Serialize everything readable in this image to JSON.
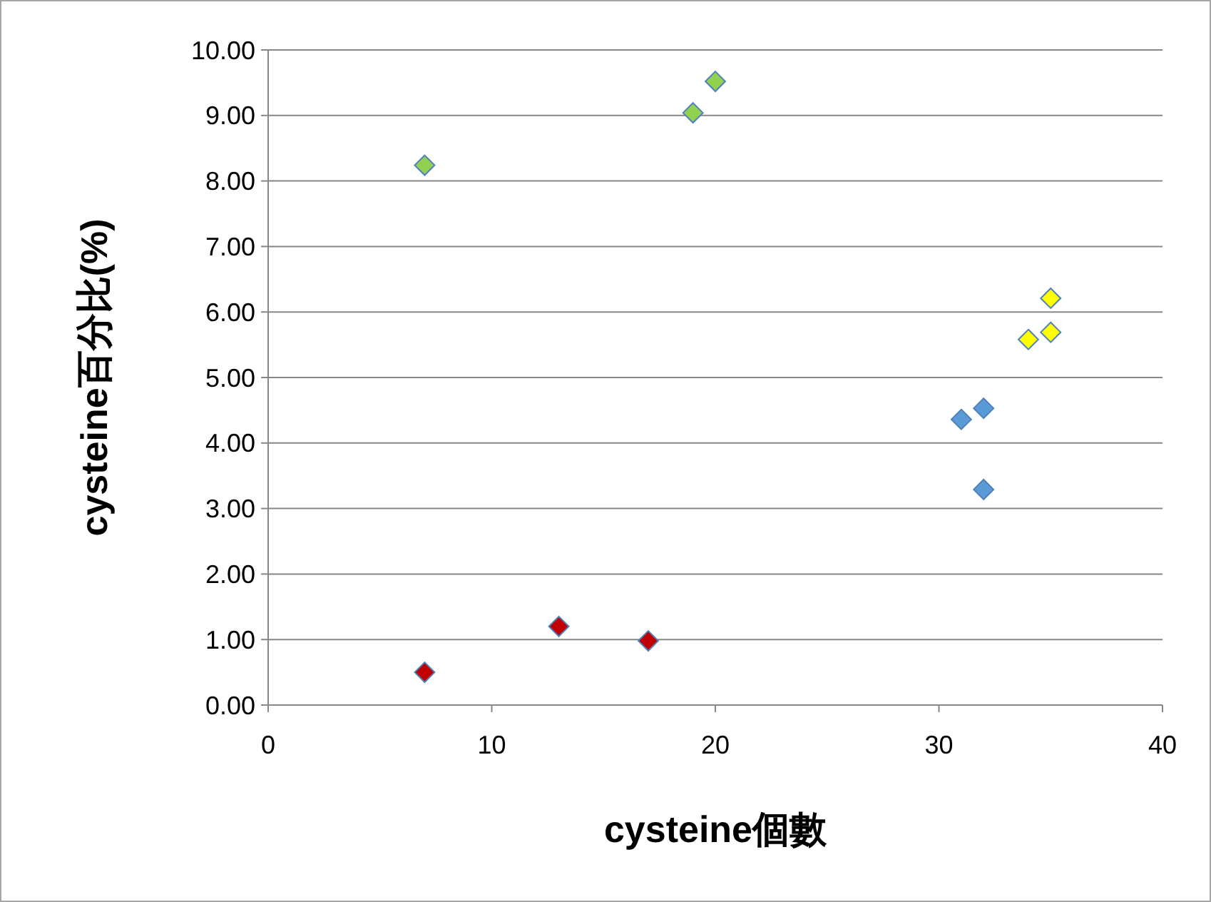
{
  "chart_data": {
    "type": "scatter",
    "xlabel": "cysteine個數",
    "ylabel": "cysteine百分比(%)",
    "xlim": [
      0,
      40
    ],
    "xticks": [
      0,
      10,
      20,
      30,
      40
    ],
    "ylim": [
      0,
      10
    ],
    "yticks": [
      {
        "value": 0,
        "label": "0.00"
      },
      {
        "value": 1,
        "label": "1.00"
      },
      {
        "value": 2,
        "label": "2.00"
      },
      {
        "value": 3,
        "label": "3.00"
      },
      {
        "value": 4,
        "label": "4.00"
      },
      {
        "value": 5,
        "label": "5.00"
      },
      {
        "value": 6,
        "label": "6.00"
      },
      {
        "value": 7,
        "label": "7.00"
      },
      {
        "value": 8,
        "label": "8.00"
      },
      {
        "value": 9,
        "label": "9.00"
      },
      {
        "value": 10,
        "label": "10.00"
      }
    ],
    "grid": "y",
    "marker": "diamond",
    "series": [
      {
        "color": "#92d050",
        "x": [
          7,
          19,
          20
        ],
        "values": [
          8.24,
          9.04,
          9.52
        ]
      },
      {
        "color": "#c00000",
        "x": [
          7,
          13,
          17
        ],
        "values": [
          0.5,
          1.2,
          0.98
        ]
      },
      {
        "color": "#5b9bd5",
        "x": [
          31,
          32,
          32
        ],
        "values": [
          4.36,
          4.53,
          3.29
        ]
      },
      {
        "color": "#ffff00",
        "x": [
          34,
          35,
          35
        ],
        "values": [
          5.58,
          5.69,
          6.21
        ]
      }
    ]
  }
}
